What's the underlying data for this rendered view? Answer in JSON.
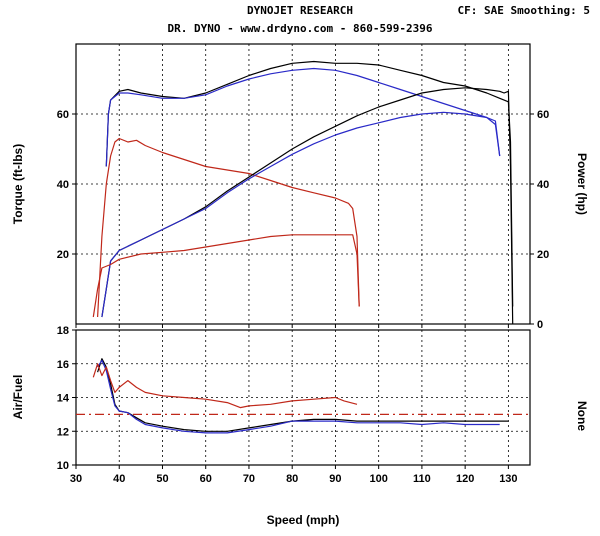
{
  "header": {
    "title": "DYNOJET RESEARCH",
    "settings": "CF: SAE  Smoothing: 5",
    "subtitle": "DR. DYNO - www.drdyno.com - 860-599-2396"
  },
  "colors": {
    "black": "#000000",
    "blue": "#2a2ac8",
    "red": "#c0281a"
  },
  "chart_data": [
    {
      "type": "line",
      "panel": "torque-power",
      "xlabel": "Speed (mph)",
      "ylabel_left": "Torque (ft-lbs)",
      "ylabel_right": "Power (hp)",
      "xlim": [
        30,
        135
      ],
      "ylim": [
        0,
        80
      ],
      "x_ticks": [
        30,
        40,
        50,
        60,
        70,
        80,
        90,
        100,
        110,
        120,
        130
      ],
      "y_ticks": [
        20,
        40,
        60
      ],
      "right_ticks": [
        "0",
        "20",
        "40",
        "60"
      ],
      "grid": true,
      "series": [
        {
          "color": "#000000",
          "measure": "torque",
          "points": [
            [
              37,
              45
            ],
            [
              37.5,
              60
            ],
            [
              38,
              64
            ],
            [
              40,
              66.5
            ],
            [
              42,
              67
            ],
            [
              45,
              66
            ],
            [
              50,
              65
            ],
            [
              55,
              64.5
            ],
            [
              60,
              66
            ],
            [
              65,
              68.5
            ],
            [
              70,
              71
            ],
            [
              75,
              73
            ],
            [
              80,
              74.5
            ],
            [
              85,
              75
            ],
            [
              90,
              74.5
            ],
            [
              95,
              74.5
            ],
            [
              100,
              74
            ],
            [
              105,
              72.5
            ],
            [
              110,
              71
            ],
            [
              115,
              69
            ],
            [
              120,
              68
            ],
            [
              125,
              66
            ],
            [
              128,
              64.5
            ],
            [
              130,
              63.5
            ],
            [
              130.5,
              52
            ],
            [
              131,
              5
            ]
          ]
        },
        {
          "color": "#2a2ac8",
          "measure": "torque",
          "points": [
            [
              37,
              45
            ],
            [
              37.5,
              60
            ],
            [
              38,
              64
            ],
            [
              40,
              66
            ],
            [
              42,
              66
            ],
            [
              45,
              65.5
            ],
            [
              50,
              64.5
            ],
            [
              55,
              64.5
            ],
            [
              60,
              65.5
            ],
            [
              65,
              68
            ],
            [
              70,
              70
            ],
            [
              75,
              71.5
            ],
            [
              80,
              72.5
            ],
            [
              85,
              73
            ],
            [
              90,
              72.5
            ],
            [
              95,
              71
            ],
            [
              100,
              69
            ],
            [
              105,
              67
            ],
            [
              110,
              65
            ],
            [
              115,
              63
            ],
            [
              120,
              61
            ],
            [
              125,
              59
            ],
            [
              127,
              57
            ],
            [
              128,
              48
            ]
          ]
        },
        {
          "color": "#c0281a",
          "measure": "torque",
          "points": [
            [
              35,
              2
            ],
            [
              36,
              25
            ],
            [
              37,
              40
            ],
            [
              38,
              48
            ],
            [
              39,
              52
            ],
            [
              40,
              53
            ],
            [
              42,
              52
            ],
            [
              44,
              52.5
            ],
            [
              46,
              51
            ],
            [
              50,
              49
            ],
            [
              55,
              47
            ],
            [
              60,
              45
            ],
            [
              65,
              44
            ],
            [
              70,
              43
            ],
            [
              75,
              41
            ],
            [
              80,
              39
            ],
            [
              85,
              37.5
            ],
            [
              90,
              36
            ],
            [
              93,
              34.5
            ],
            [
              94,
              33
            ],
            [
              95,
              25
            ],
            [
              95.5,
              5
            ]
          ]
        },
        {
          "color": "#000000",
          "measure": "power",
          "points": [
            [
              36,
              2
            ],
            [
              37,
              10
            ],
            [
              38,
              18
            ],
            [
              40,
              21
            ],
            [
              45,
              24
            ],
            [
              50,
              27
            ],
            [
              55,
              30
            ],
            [
              60,
              33.5
            ],
            [
              65,
              38
            ],
            [
              70,
              42
            ],
            [
              75,
              46
            ],
            [
              80,
              50
            ],
            [
              85,
              53.5
            ],
            [
              90,
              56.5
            ],
            [
              95,
              59.5
            ],
            [
              100,
              62
            ],
            [
              105,
              64
            ],
            [
              110,
              66
            ],
            [
              115,
              67
            ],
            [
              120,
              67.5
            ],
            [
              125,
              67
            ],
            [
              128,
              66.5
            ],
            [
              129,
              66
            ],
            [
              130,
              66.5
            ],
            [
              130.5,
              45
            ],
            [
              131,
              0
            ]
          ]
        },
        {
          "color": "#2a2ac8",
          "measure": "power",
          "points": [
            [
              36,
              2
            ],
            [
              37,
              10
            ],
            [
              38,
              18
            ],
            [
              40,
              21
            ],
            [
              45,
              24
            ],
            [
              50,
              27
            ],
            [
              55,
              30
            ],
            [
              60,
              33
            ],
            [
              65,
              37.5
            ],
            [
              70,
              41.5
            ],
            [
              75,
              45
            ],
            [
              80,
              48.5
            ],
            [
              85,
              51.5
            ],
            [
              90,
              54
            ],
            [
              95,
              56
            ],
            [
              100,
              57.5
            ],
            [
              105,
              59
            ],
            [
              110,
              60
            ],
            [
              115,
              60.5
            ],
            [
              120,
              60
            ],
            [
              125,
              59
            ],
            [
              127,
              58
            ],
            [
              128,
              48
            ]
          ]
        },
        {
          "color": "#c0281a",
          "measure": "power",
          "points": [
            [
              34,
              2
            ],
            [
              35,
              10
            ],
            [
              36,
              16
            ],
            [
              38,
              17
            ],
            [
              40,
              18.5
            ],
            [
              45,
              20
            ],
            [
              50,
              20.5
            ],
            [
              55,
              21
            ],
            [
              60,
              22
            ],
            [
              65,
              23
            ],
            [
              70,
              24
            ],
            [
              75,
              25
            ],
            [
              80,
              25.5
            ],
            [
              85,
              25.5
            ],
            [
              90,
              25.5
            ],
            [
              94,
              25.5
            ],
            [
              95,
              20
            ],
            [
              95.5,
              5
            ]
          ]
        }
      ]
    },
    {
      "type": "line",
      "panel": "air-fuel",
      "xlabel": "Speed (mph)",
      "ylabel_left": "Air/Fuel",
      "ylabel_right": "None",
      "xlim": [
        30,
        135
      ],
      "ylim": [
        10,
        18
      ],
      "x_ticks": [
        30,
        40,
        50,
        60,
        70,
        80,
        90,
        100,
        110,
        120,
        130
      ],
      "y_ticks": [
        10,
        12,
        14,
        16,
        18
      ],
      "grid": true,
      "reference_line": 13,
      "series": [
        {
          "color": "#000000",
          "points": [
            [
              35,
              15.5
            ],
            [
              36,
              16.3
            ],
            [
              37,
              15.8
            ],
            [
              38,
              14.8
            ],
            [
              39,
              13.6
            ],
            [
              40,
              13.2
            ],
            [
              42,
              13.1
            ],
            [
              44,
              12.8
            ],
            [
              46,
              12.5
            ],
            [
              50,
              12.3
            ],
            [
              55,
              12.1
            ],
            [
              60,
              12.0
            ],
            [
              65,
              12.0
            ],
            [
              70,
              12.2
            ],
            [
              75,
              12.4
            ],
            [
              80,
              12.6
            ],
            [
              85,
              12.7
            ],
            [
              90,
              12.7
            ],
            [
              95,
              12.6
            ],
            [
              100,
              12.6
            ],
            [
              105,
              12.6
            ],
            [
              110,
              12.6
            ],
            [
              115,
              12.6
            ],
            [
              120,
              12.6
            ],
            [
              125,
              12.6
            ],
            [
              130,
              12.6
            ]
          ]
        },
        {
          "color": "#2a2ac8",
          "points": [
            [
              35,
              15.8
            ],
            [
              36,
              16.2
            ],
            [
              37,
              15.6
            ],
            [
              38,
              14.5
            ],
            [
              39,
              13.5
            ],
            [
              40,
              13.2
            ],
            [
              42,
              13.1
            ],
            [
              44,
              12.7
            ],
            [
              46,
              12.4
            ],
            [
              50,
              12.2
            ],
            [
              55,
              12.0
            ],
            [
              60,
              11.9
            ],
            [
              65,
              11.9
            ],
            [
              70,
              12.1
            ],
            [
              75,
              12.3
            ],
            [
              80,
              12.6
            ],
            [
              85,
              12.6
            ],
            [
              90,
              12.6
            ],
            [
              95,
              12.5
            ],
            [
              100,
              12.5
            ],
            [
              105,
              12.5
            ],
            [
              110,
              12.4
            ],
            [
              115,
              12.5
            ],
            [
              120,
              12.4
            ],
            [
              125,
              12.4
            ],
            [
              128,
              12.4
            ]
          ]
        },
        {
          "color": "#c0281a",
          "points": [
            [
              34,
              15.2
            ],
            [
              35,
              16.0
            ],
            [
              36,
              15.3
            ],
            [
              37,
              15.8
            ],
            [
              38,
              15.0
            ],
            [
              39,
              14.3
            ],
            [
              40,
              14.6
            ],
            [
              42,
              15.0
            ],
            [
              44,
              14.6
            ],
            [
              46,
              14.3
            ],
            [
              50,
              14.1
            ],
            [
              55,
              14.0
            ],
            [
              60,
              13.9
            ],
            [
              65,
              13.7
            ],
            [
              68,
              13.4
            ],
            [
              70,
              13.5
            ],
            [
              75,
              13.6
            ],
            [
              80,
              13.8
            ],
            [
              85,
              13.9
            ],
            [
              90,
              14.0
            ],
            [
              92,
              13.8
            ],
            [
              95,
              13.6
            ]
          ]
        }
      ]
    }
  ]
}
